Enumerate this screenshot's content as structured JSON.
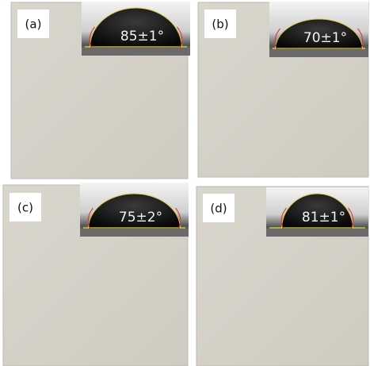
{
  "panels": [
    {
      "label": "(a)",
      "angle": "85±1°"
    },
    {
      "label": "(b)",
      "angle": "70±1°"
    },
    {
      "label": "(c)",
      "angle": "75±2°"
    },
    {
      "label": "(d)",
      "angle": "81±1°"
    }
  ]
}
